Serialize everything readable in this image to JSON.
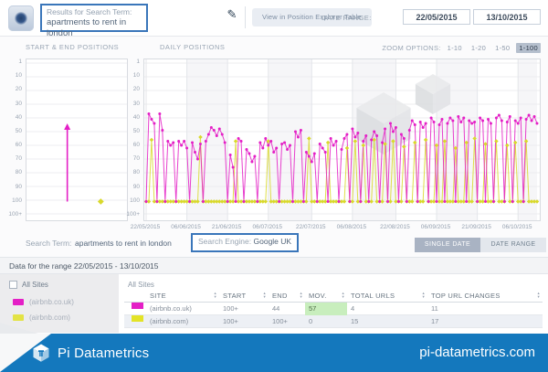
{
  "header": {
    "results_label": "Results for Search Term:",
    "results_value": "apartments to rent in london",
    "edit_icon": "pencil-icon",
    "view_button": "View in Position Explorer Table",
    "date_range_label": "DATE RANGE:",
    "date_from": "22/05/2015",
    "date_to": "13/10/2015"
  },
  "chart_section": {
    "start_end_title": "START & END POSITIONS",
    "daily_title": "DAILY POSITIONS",
    "zoom_label": "ZOOM OPTIONS:",
    "zoom_options": [
      "1-10",
      "1-20",
      "1-50",
      "1-100"
    ],
    "zoom_selected": "1-100"
  },
  "chart_data": {
    "type": "line",
    "title": "DAILY POSITIONS",
    "y_axis_labels": [
      "1",
      "10",
      "20",
      "30",
      "40",
      "50",
      "60",
      "70",
      "80",
      "90",
      "100",
      "100+"
    ],
    "y_inverted": true,
    "value_100plus": 101,
    "x_start": "22/05/2015",
    "x_end": "13/10/2015",
    "x_tick_labels": [
      "22/05/2015",
      "06/06/2015",
      "21/06/2015",
      "06/07/2015",
      "22/07/2015",
      "06/08/2015",
      "22/08/2015",
      "06/09/2015",
      "21/09/2015",
      "06/10/2015"
    ],
    "tick_day_indices": [
      0,
      15,
      30,
      45,
      61,
      76,
      92,
      107,
      122,
      137
    ],
    "series": [
      {
        "name": "(airbnb.co.uk)",
        "color": "#e41fc6",
        "start": "100+",
        "end": "44",
        "values": [
          101,
          37,
          41,
          44,
          101,
          37,
          49,
          101,
          57,
          60,
          58,
          101,
          57,
          60,
          57,
          62,
          101,
          58,
          65,
          70,
          59,
          101,
          57,
          52,
          47,
          49,
          53,
          48,
          52,
          58,
          101,
          67,
          76,
          101,
          55,
          57,
          101,
          63,
          66,
          72,
          68,
          101,
          58,
          62,
          55,
          60,
          57,
          65,
          62,
          101,
          59,
          58,
          63,
          60,
          101,
          50,
          54,
          49,
          101,
          65,
          68,
          72,
          66,
          101,
          59,
          62,
          65,
          101,
          55,
          60,
          57,
          101,
          63,
          55,
          52,
          101,
          48,
          54,
          51,
          101,
          57,
          53,
          101,
          56,
          50,
          53,
          101,
          58,
          48,
          101,
          44,
          50,
          47,
          101,
          52,
          55,
          101,
          49,
          42,
          45,
          101,
          43,
          47,
          44,
          101,
          40,
          43,
          101,
          45,
          41,
          101,
          44,
          40,
          42,
          101,
          39,
          43,
          40,
          101,
          42,
          44,
          43,
          101,
          40,
          42,
          101,
          41,
          44,
          101,
          40,
          38,
          42,
          101,
          43,
          39,
          101,
          42,
          44,
          40,
          101,
          41,
          38,
          42,
          39,
          44
        ]
      },
      {
        "name": "(airbnb.com)",
        "color": "#d9d92b",
        "start": "100+",
        "end": "100+",
        "values": [
          101,
          101,
          56,
          101,
          101,
          101,
          101,
          101,
          101,
          101,
          101,
          101,
          101,
          101,
          101,
          101,
          101,
          101,
          101,
          101,
          54,
          101,
          101,
          101,
          101,
          101,
          101,
          101,
          101,
          101,
          101,
          101,
          101,
          57,
          101,
          101,
          101,
          101,
          101,
          101,
          101,
          101,
          101,
          101,
          101,
          57,
          101,
          101,
          101,
          101,
          101,
          101,
          101,
          101,
          101,
          101,
          101,
          101,
          101,
          101,
          55,
          101,
          101,
          101,
          101,
          101,
          101,
          58,
          101,
          101,
          101,
          101,
          101,
          101,
          62,
          101,
          101,
          57,
          101,
          101,
          60,
          101,
          101,
          101,
          56,
          101,
          101,
          101,
          59,
          101,
          101,
          57,
          101,
          101,
          101,
          61,
          101,
          101,
          101,
          58,
          101,
          101,
          101,
          56,
          101,
          101,
          101,
          60,
          101,
          101,
          57,
          101,
          101,
          101,
          62,
          101,
          101,
          101,
          58,
          101,
          101,
          55,
          101,
          101,
          101,
          59,
          101,
          101,
          101,
          57,
          101,
          101,
          101,
          60,
          101,
          101,
          58,
          101,
          101,
          101,
          57,
          101,
          101,
          101,
          101
        ]
      }
    ]
  },
  "filter_bar": {
    "search_term_label": "Search Term:",
    "search_term": "apartments to rent in london",
    "search_engine_label": "Search Engine:",
    "search_engine": "Google UK",
    "single_date_button": "SINGLE DATE",
    "date_range_button": "DATE RANGE"
  },
  "data_panel": {
    "range_title": "Data for the range 22/05/2015 - 13/10/2015",
    "all_sites_checkbox": "All Sites",
    "all_sites_label": "All Sites",
    "legend": [
      {
        "label": "(airbnb.co.uk)",
        "color": "#e41fc6"
      },
      {
        "label": "(airbnb.com)",
        "color": "#e3e345"
      }
    ],
    "table": {
      "columns": [
        "SITE",
        "START",
        "END",
        "MOV.",
        "TOTAL URLS",
        "TOP URL CHANGES"
      ],
      "rows": [
        {
          "color": "#e41fc6",
          "site": "(airbnb.co.uk)",
          "start": "100+",
          "end": "44",
          "mov": "57",
          "mov_highlight": true,
          "total_urls": "4",
          "top_url_changes": "11"
        },
        {
          "color": "#e3e327",
          "site": "(airbnb.com)",
          "start": "100+",
          "end": "100+",
          "mov": "0",
          "mov_highlight": false,
          "total_urls": "15",
          "top_url_changes": "17"
        }
      ]
    }
  },
  "footer": {
    "brand": "Pi Datametrics",
    "site": "pi-datametrics.com",
    "bg_color": "#1478bd"
  }
}
